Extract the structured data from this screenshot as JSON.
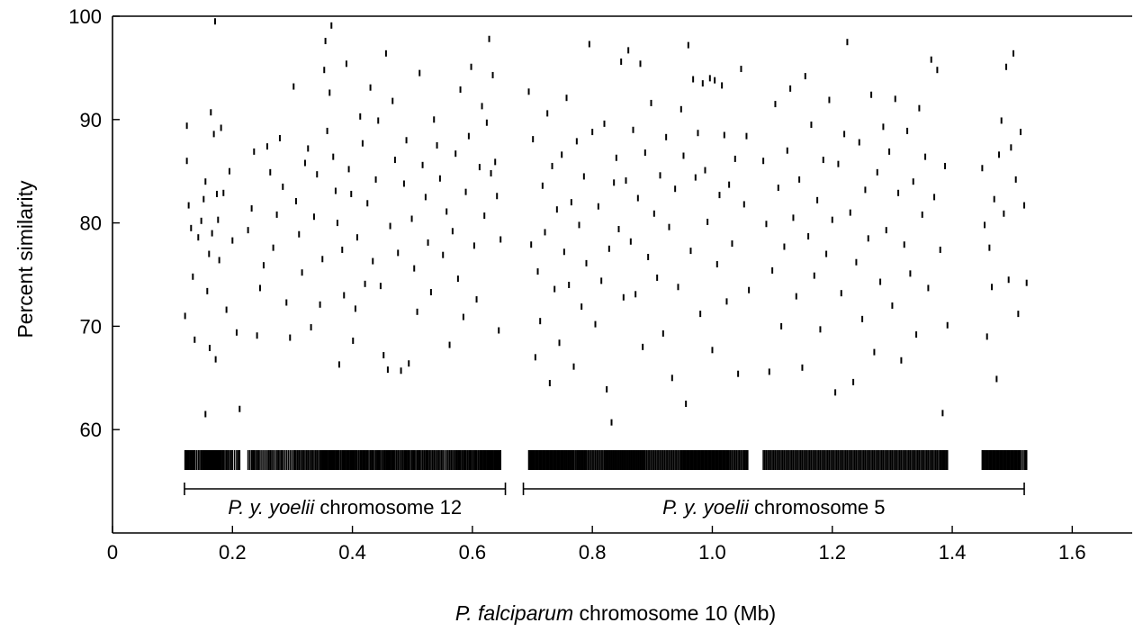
{
  "chart_data": {
    "type": "scatter",
    "title": "",
    "xlabel": {
      "italic": "P. falciparum",
      "rest": " chromosome 10 (Mb)"
    },
    "ylabel": "Percent similarity",
    "xlim": [
      0,
      1.7
    ],
    "ylim": [
      50,
      100
    ],
    "x_ticks": [
      0,
      0.2,
      0.4,
      0.6,
      0.8,
      1.0,
      1.2,
      1.4,
      1.6
    ],
    "x_tick_labels": [
      "0",
      "0.2",
      "0.4",
      "0.6",
      "0.8",
      "1.0",
      "1.2",
      "1.4",
      "1.6"
    ],
    "y_ticks": [
      60,
      70,
      80,
      90,
      100
    ],
    "y_tick_labels": [
      "60",
      "70",
      "80",
      "90",
      "100"
    ],
    "marker": "short vertical tick",
    "synteny_blocks": [
      {
        "label_italic": "P. y. yoelii",
        "label_rest": " chromosome 12",
        "start": 0.12,
        "end": 0.655
      },
      {
        "label_italic": "P. y. yoelii",
        "label_rest": " chromosome 5",
        "start": 0.685,
        "end": 1.52
      }
    ],
    "rug_gaps": [
      [
        0.655,
        0.685
      ],
      [
        1.06,
        1.08
      ],
      [
        1.395,
        1.445
      ]
    ],
    "points": [
      {
        "x": 0.124,
        "y": 89.4
      },
      {
        "x": 0.124,
        "y": 86.0
      },
      {
        "x": 0.127,
        "y": 81.7
      },
      {
        "x": 0.121,
        "y": 71.0
      },
      {
        "x": 0.131,
        "y": 79.5
      },
      {
        "x": 0.134,
        "y": 74.8
      },
      {
        "x": 0.137,
        "y": 68.7
      },
      {
        "x": 0.143,
        "y": 78.6
      },
      {
        "x": 0.148,
        "y": 80.2
      },
      {
        "x": 0.152,
        "y": 82.3
      },
      {
        "x": 0.155,
        "y": 84.0
      },
      {
        "x": 0.158,
        "y": 73.4
      },
      {
        "x": 0.161,
        "y": 77.0
      },
      {
        "x": 0.164,
        "y": 90.7
      },
      {
        "x": 0.166,
        "y": 79.0
      },
      {
        "x": 0.169,
        "y": 88.6
      },
      {
        "x": 0.171,
        "y": 99.5
      },
      {
        "x": 0.174,
        "y": 82.8
      },
      {
        "x": 0.176,
        "y": 80.3
      },
      {
        "x": 0.178,
        "y": 76.4
      },
      {
        "x": 0.181,
        "y": 89.2
      },
      {
        "x": 0.185,
        "y": 82.9
      },
      {
        "x": 0.19,
        "y": 71.6
      },
      {
        "x": 0.195,
        "y": 85.0
      },
      {
        "x": 0.2,
        "y": 78.3
      },
      {
        "x": 0.207,
        "y": 69.4
      },
      {
        "x": 0.212,
        "y": 62.0
      },
      {
        "x": 0.155,
        "y": 61.5
      },
      {
        "x": 0.162,
        "y": 67.9
      },
      {
        "x": 0.172,
        "y": 66.8
      },
      {
        "x": 0.226,
        "y": 79.3
      },
      {
        "x": 0.232,
        "y": 81.4
      },
      {
        "x": 0.236,
        "y": 86.9
      },
      {
        "x": 0.241,
        "y": 69.1
      },
      {
        "x": 0.246,
        "y": 73.7
      },
      {
        "x": 0.252,
        "y": 75.9
      },
      {
        "x": 0.258,
        "y": 87.4
      },
      {
        "x": 0.263,
        "y": 84.9
      },
      {
        "x": 0.268,
        "y": 77.6
      },
      {
        "x": 0.274,
        "y": 80.8
      },
      {
        "x": 0.279,
        "y": 88.2
      },
      {
        "x": 0.284,
        "y": 83.5
      },
      {
        "x": 0.29,
        "y": 72.3
      },
      {
        "x": 0.296,
        "y": 68.9
      },
      {
        "x": 0.302,
        "y": 93.2
      },
      {
        "x": 0.306,
        "y": 82.1
      },
      {
        "x": 0.311,
        "y": 78.9
      },
      {
        "x": 0.316,
        "y": 75.2
      },
      {
        "x": 0.321,
        "y": 85.8
      },
      {
        "x": 0.326,
        "y": 87.2
      },
      {
        "x": 0.331,
        "y": 69.9
      },
      {
        "x": 0.336,
        "y": 80.6
      },
      {
        "x": 0.341,
        "y": 84.7
      },
      {
        "x": 0.346,
        "y": 72.1
      },
      {
        "x": 0.35,
        "y": 76.5
      },
      {
        "x": 0.353,
        "y": 94.8
      },
      {
        "x": 0.355,
        "y": 97.6
      },
      {
        "x": 0.358,
        "y": 88.9
      },
      {
        "x": 0.362,
        "y": 92.6
      },
      {
        "x": 0.365,
        "y": 99.1
      },
      {
        "x": 0.368,
        "y": 86.4
      },
      {
        "x": 0.372,
        "y": 83.1
      },
      {
        "x": 0.375,
        "y": 80.0
      },
      {
        "x": 0.378,
        "y": 66.3
      },
      {
        "x": 0.383,
        "y": 77.4
      },
      {
        "x": 0.386,
        "y": 73.0
      },
      {
        "x": 0.39,
        "y": 95.4
      },
      {
        "x": 0.394,
        "y": 85.2
      },
      {
        "x": 0.398,
        "y": 82.8
      },
      {
        "x": 0.401,
        "y": 68.6
      },
      {
        "x": 0.405,
        "y": 71.7
      },
      {
        "x": 0.408,
        "y": 78.6
      },
      {
        "x": 0.413,
        "y": 90.3
      },
      {
        "x": 0.417,
        "y": 87.7
      },
      {
        "x": 0.421,
        "y": 74.1
      },
      {
        "x": 0.425,
        "y": 81.9
      },
      {
        "x": 0.43,
        "y": 93.1
      },
      {
        "x": 0.434,
        "y": 76.3
      },
      {
        "x": 0.439,
        "y": 84.2
      },
      {
        "x": 0.443,
        "y": 89.9
      },
      {
        "x": 0.447,
        "y": 73.9
      },
      {
        "x": 0.452,
        "y": 67.2
      },
      {
        "x": 0.456,
        "y": 96.4
      },
      {
        "x": 0.459,
        "y": 65.8
      },
      {
        "x": 0.463,
        "y": 79.7
      },
      {
        "x": 0.467,
        "y": 91.8
      },
      {
        "x": 0.471,
        "y": 86.1
      },
      {
        "x": 0.476,
        "y": 77.1
      },
      {
        "x": 0.481,
        "y": 65.7
      },
      {
        "x": 0.486,
        "y": 83.8
      },
      {
        "x": 0.49,
        "y": 88.0
      },
      {
        "x": 0.494,
        "y": 66.4
      },
      {
        "x": 0.499,
        "y": 80.4
      },
      {
        "x": 0.503,
        "y": 75.6
      },
      {
        "x": 0.508,
        "y": 71.4
      },
      {
        "x": 0.512,
        "y": 94.5
      },
      {
        "x": 0.517,
        "y": 85.6
      },
      {
        "x": 0.522,
        "y": 82.5
      },
      {
        "x": 0.526,
        "y": 78.1
      },
      {
        "x": 0.531,
        "y": 73.3
      },
      {
        "x": 0.536,
        "y": 90.0
      },
      {
        "x": 0.541,
        "y": 87.5
      },
      {
        "x": 0.546,
        "y": 84.3
      },
      {
        "x": 0.551,
        "y": 76.9
      },
      {
        "x": 0.557,
        "y": 81.1
      },
      {
        "x": 0.562,
        "y": 68.2
      },
      {
        "x": 0.567,
        "y": 79.2
      },
      {
        "x": 0.572,
        "y": 86.7
      },
      {
        "x": 0.576,
        "y": 74.6
      },
      {
        "x": 0.58,
        "y": 92.9
      },
      {
        "x": 0.585,
        "y": 70.9
      },
      {
        "x": 0.589,
        "y": 83.0
      },
      {
        "x": 0.594,
        "y": 88.4
      },
      {
        "x": 0.598,
        "y": 95.1
      },
      {
        "x": 0.603,
        "y": 77.8
      },
      {
        "x": 0.607,
        "y": 72.6
      },
      {
        "x": 0.612,
        "y": 85.4
      },
      {
        "x": 0.616,
        "y": 91.3
      },
      {
        "x": 0.62,
        "y": 80.7
      },
      {
        "x": 0.624,
        "y": 89.7
      },
      {
        "x": 0.628,
        "y": 97.8
      },
      {
        "x": 0.631,
        "y": 84.8
      },
      {
        "x": 0.634,
        "y": 94.3
      },
      {
        "x": 0.638,
        "y": 85.9
      },
      {
        "x": 0.641,
        "y": 82.6
      },
      {
        "x": 0.644,
        "y": 69.6
      },
      {
        "x": 0.647,
        "y": 78.4
      },
      {
        "x": 0.694,
        "y": 92.7
      },
      {
        "x": 0.698,
        "y": 77.9
      },
      {
        "x": 0.701,
        "y": 88.1
      },
      {
        "x": 0.705,
        "y": 67.0
      },
      {
        "x": 0.709,
        "y": 75.3
      },
      {
        "x": 0.713,
        "y": 70.5
      },
      {
        "x": 0.717,
        "y": 83.6
      },
      {
        "x": 0.721,
        "y": 79.1
      },
      {
        "x": 0.725,
        "y": 90.6
      },
      {
        "x": 0.729,
        "y": 64.5
      },
      {
        "x": 0.733,
        "y": 85.5
      },
      {
        "x": 0.737,
        "y": 73.6
      },
      {
        "x": 0.741,
        "y": 81.3
      },
      {
        "x": 0.745,
        "y": 68.4
      },
      {
        "x": 0.749,
        "y": 86.6
      },
      {
        "x": 0.753,
        "y": 77.2
      },
      {
        "x": 0.757,
        "y": 92.1
      },
      {
        "x": 0.761,
        "y": 74.0
      },
      {
        "x": 0.765,
        "y": 82.0
      },
      {
        "x": 0.769,
        "y": 66.1
      },
      {
        "x": 0.774,
        "y": 87.9
      },
      {
        "x": 0.778,
        "y": 79.8
      },
      {
        "x": 0.782,
        "y": 71.9
      },
      {
        "x": 0.786,
        "y": 84.5
      },
      {
        "x": 0.79,
        "y": 76.1
      },
      {
        "x": 0.795,
        "y": 97.3
      },
      {
        "x": 0.8,
        "y": 88.8
      },
      {
        "x": 0.805,
        "y": 70.2
      },
      {
        "x": 0.81,
        "y": 81.6
      },
      {
        "x": 0.815,
        "y": 74.4
      },
      {
        "x": 0.82,
        "y": 89.6
      },
      {
        "x": 0.824,
        "y": 63.9
      },
      {
        "x": 0.828,
        "y": 77.5
      },
      {
        "x": 0.832,
        "y": 60.7
      },
      {
        "x": 0.836,
        "y": 83.9
      },
      {
        "x": 0.84,
        "y": 86.3
      },
      {
        "x": 0.844,
        "y": 79.4
      },
      {
        "x": 0.848,
        "y": 95.6
      },
      {
        "x": 0.852,
        "y": 72.8
      },
      {
        "x": 0.856,
        "y": 84.1
      },
      {
        "x": 0.86,
        "y": 96.7
      },
      {
        "x": 0.864,
        "y": 78.2
      },
      {
        "x": 0.868,
        "y": 89.0
      },
      {
        "x": 0.872,
        "y": 73.1
      },
      {
        "x": 0.876,
        "y": 82.4
      },
      {
        "x": 0.88,
        "y": 95.4
      },
      {
        "x": 0.884,
        "y": 68.0
      },
      {
        "x": 0.888,
        "y": 86.8
      },
      {
        "x": 0.893,
        "y": 76.7
      },
      {
        "x": 0.898,
        "y": 91.6
      },
      {
        "x": 0.903,
        "y": 80.9
      },
      {
        "x": 0.908,
        "y": 74.7
      },
      {
        "x": 0.913,
        "y": 84.6
      },
      {
        "x": 0.918,
        "y": 69.3
      },
      {
        "x": 0.923,
        "y": 88.3
      },
      {
        "x": 0.928,
        "y": 79.6
      },
      {
        "x": 0.933,
        "y": 65.0
      },
      {
        "x": 0.938,
        "y": 83.3
      },
      {
        "x": 0.943,
        "y": 73.8
      },
      {
        "x": 0.948,
        "y": 91.0
      },
      {
        "x": 0.952,
        "y": 86.5
      },
      {
        "x": 0.956,
        "y": 62.5
      },
      {
        "x": 0.96,
        "y": 97.2
      },
      {
        "x": 0.964,
        "y": 77.3
      },
      {
        "x": 0.968,
        "y": 93.9
      },
      {
        "x": 0.972,
        "y": 84.4
      },
      {
        "x": 0.976,
        "y": 88.7
      },
      {
        "x": 0.98,
        "y": 71.2
      },
      {
        "x": 0.984,
        "y": 93.5
      },
      {
        "x": 0.988,
        "y": 85.1
      },
      {
        "x": 0.992,
        "y": 80.1
      },
      {
        "x": 0.996,
        "y": 94.0
      },
      {
        "x": 1.0,
        "y": 67.7
      },
      {
        "x": 1.004,
        "y": 93.8
      },
      {
        "x": 1.008,
        "y": 76.0
      },
      {
        "x": 1.012,
        "y": 82.7
      },
      {
        "x": 1.016,
        "y": 93.3
      },
      {
        "x": 1.02,
        "y": 88.5
      },
      {
        "x": 1.024,
        "y": 72.4
      },
      {
        "x": 1.028,
        "y": 83.7
      },
      {
        "x": 1.033,
        "y": 78.0
      },
      {
        "x": 1.038,
        "y": 86.2
      },
      {
        "x": 1.043,
        "y": 65.4
      },
      {
        "x": 1.048,
        "y": 94.9
      },
      {
        "x": 1.053,
        "y": 81.8
      },
      {
        "x": 1.057,
        "y": 88.4
      },
      {
        "x": 1.061,
        "y": 73.5
      },
      {
        "x": 1.085,
        "y": 86.0
      },
      {
        "x": 1.09,
        "y": 79.9
      },
      {
        "x": 1.095,
        "y": 65.6
      },
      {
        "x": 1.1,
        "y": 75.4
      },
      {
        "x": 1.105,
        "y": 91.5
      },
      {
        "x": 1.11,
        "y": 83.4
      },
      {
        "x": 1.115,
        "y": 70.0
      },
      {
        "x": 1.12,
        "y": 77.7
      },
      {
        "x": 1.125,
        "y": 87.0
      },
      {
        "x": 1.13,
        "y": 93.0
      },
      {
        "x": 1.135,
        "y": 80.5
      },
      {
        "x": 1.14,
        "y": 72.9
      },
      {
        "x": 1.145,
        "y": 84.2
      },
      {
        "x": 1.15,
        "y": 66.0
      },
      {
        "x": 1.155,
        "y": 94.2
      },
      {
        "x": 1.16,
        "y": 78.7
      },
      {
        "x": 1.165,
        "y": 89.5
      },
      {
        "x": 1.17,
        "y": 74.9
      },
      {
        "x": 1.175,
        "y": 82.2
      },
      {
        "x": 1.18,
        "y": 69.7
      },
      {
        "x": 1.185,
        "y": 86.1
      },
      {
        "x": 1.19,
        "y": 77.0
      },
      {
        "x": 1.195,
        "y": 91.9
      },
      {
        "x": 1.2,
        "y": 80.3
      },
      {
        "x": 1.205,
        "y": 63.6
      },
      {
        "x": 1.21,
        "y": 85.7
      },
      {
        "x": 1.215,
        "y": 73.2
      },
      {
        "x": 1.22,
        "y": 88.6
      },
      {
        "x": 1.225,
        "y": 97.5
      },
      {
        "x": 1.23,
        "y": 81.0
      },
      {
        "x": 1.235,
        "y": 64.6
      },
      {
        "x": 1.24,
        "y": 76.2
      },
      {
        "x": 1.245,
        "y": 87.8
      },
      {
        "x": 1.25,
        "y": 70.7
      },
      {
        "x": 1.255,
        "y": 83.2
      },
      {
        "x": 1.26,
        "y": 78.5
      },
      {
        "x": 1.265,
        "y": 92.4
      },
      {
        "x": 1.27,
        "y": 67.5
      },
      {
        "x": 1.275,
        "y": 84.9
      },
      {
        "x": 1.28,
        "y": 74.3
      },
      {
        "x": 1.285,
        "y": 89.3
      },
      {
        "x": 1.29,
        "y": 79.3
      },
      {
        "x": 1.295,
        "y": 86.9
      },
      {
        "x": 1.3,
        "y": 72.0
      },
      {
        "x": 1.305,
        "y": 92.0
      },
      {
        "x": 1.31,
        "y": 82.9
      },
      {
        "x": 1.315,
        "y": 66.7
      },
      {
        "x": 1.32,
        "y": 77.9
      },
      {
        "x": 1.325,
        "y": 88.9
      },
      {
        "x": 1.33,
        "y": 75.1
      },
      {
        "x": 1.335,
        "y": 84.0
      },
      {
        "x": 1.34,
        "y": 69.2
      },
      {
        "x": 1.345,
        "y": 91.1
      },
      {
        "x": 1.35,
        "y": 80.8
      },
      {
        "x": 1.355,
        "y": 86.4
      },
      {
        "x": 1.36,
        "y": 73.7
      },
      {
        "x": 1.365,
        "y": 95.8
      },
      {
        "x": 1.37,
        "y": 82.5
      },
      {
        "x": 1.375,
        "y": 94.8
      },
      {
        "x": 1.38,
        "y": 77.4
      },
      {
        "x": 1.384,
        "y": 61.6
      },
      {
        "x": 1.388,
        "y": 85.5
      },
      {
        "x": 1.392,
        "y": 70.1
      },
      {
        "x": 1.45,
        "y": 85.3
      },
      {
        "x": 1.454,
        "y": 79.8
      },
      {
        "x": 1.458,
        "y": 69.0
      },
      {
        "x": 1.462,
        "y": 77.6
      },
      {
        "x": 1.466,
        "y": 73.8
      },
      {
        "x": 1.47,
        "y": 82.3
      },
      {
        "x": 1.474,
        "y": 64.9
      },
      {
        "x": 1.478,
        "y": 86.6
      },
      {
        "x": 1.482,
        "y": 89.9
      },
      {
        "x": 1.486,
        "y": 80.9
      },
      {
        "x": 1.49,
        "y": 95.1
      },
      {
        "x": 1.494,
        "y": 74.5
      },
      {
        "x": 1.498,
        "y": 87.3
      },
      {
        "x": 1.502,
        "y": 96.4
      },
      {
        "x": 1.506,
        "y": 84.2
      },
      {
        "x": 1.51,
        "y": 71.2
      },
      {
        "x": 1.514,
        "y": 88.8
      },
      {
        "x": 1.52,
        "y": 81.7
      },
      {
        "x": 1.524,
        "y": 74.2
      }
    ]
  }
}
